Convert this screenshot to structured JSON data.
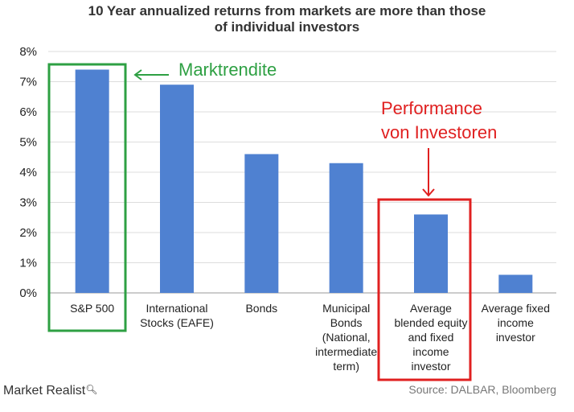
{
  "chart_data": {
    "type": "bar",
    "title": "10 Year annualized returns from markets are more than those of individual investors",
    "title_lines": [
      "10 Year annualized returns from markets are more than those",
      "of individual investors"
    ],
    "categories": [
      "S&P 500",
      "International\nStocks (EAFE)",
      "Bonds",
      "Municipal\nBonds\n(National,\nintermediate\nterm)",
      "Average\nblended equity\nand fixed\nincome\ninvestor",
      "Average fixed\nincome\ninvestor"
    ],
    "values": [
      7.4,
      6.9,
      4.6,
      4.3,
      2.6,
      0.6
    ],
    "yticks": [
      "0%",
      "1%",
      "2%",
      "3%",
      "4%",
      "5%",
      "6%",
      "7%",
      "8%"
    ],
    "ylim": [
      0,
      8
    ],
    "grid": true,
    "bar_color": "#4f81d1"
  },
  "annotations": {
    "market": "Marktrendite",
    "investors": "Performance\nvon Investoren",
    "green_color": "#2ea043",
    "red_color": "#e02020"
  },
  "footer": {
    "logo": "Market Realist",
    "source": "Source: DALBAR, Bloomberg"
  }
}
